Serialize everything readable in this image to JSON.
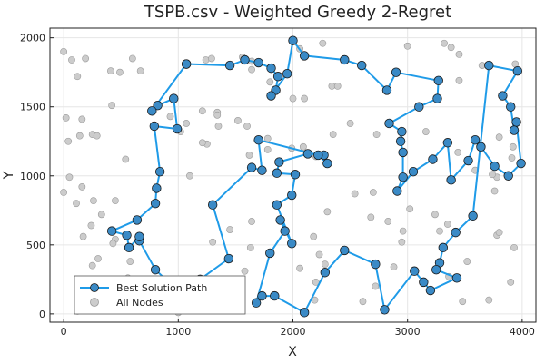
{
  "chart_data": {
    "type": "scatter",
    "title": "TSPB.csv - Weighted Greedy 2-Regret",
    "xlabel": "X",
    "ylabel": "Y",
    "xlim": [
      -120,
      4120
    ],
    "ylim": [
      -60,
      2070
    ],
    "xticks": [
      0,
      1000,
      2000,
      3000,
      4000
    ],
    "yticks": [
      0,
      500,
      1000,
      1500,
      2000
    ],
    "grid": true,
    "legend_position": "bottom-left",
    "colors": {
      "path": "#1f9be8",
      "node_fill": "#3a8ac6",
      "node_edge": "#1a1a1a",
      "all_nodes": "#cccccc",
      "all_nodes_edge": "#9a9a9a"
    },
    "series": [
      {
        "name": "Best Solution Path",
        "style": "line+marker",
        "points": [
          [
            1070,
            1810
          ],
          [
            1450,
            1800
          ],
          [
            1580,
            1840
          ],
          [
            1700,
            1820
          ],
          [
            1810,
            1780
          ],
          [
            1870,
            1720
          ],
          [
            1850,
            1620
          ],
          [
            1810,
            1580
          ],
          [
            1950,
            1740
          ],
          [
            2000,
            1980
          ],
          [
            2100,
            1870
          ],
          [
            2450,
            1840
          ],
          [
            2600,
            1800
          ],
          [
            2820,
            1620
          ],
          [
            2900,
            1750
          ],
          [
            3270,
            1690
          ],
          [
            3260,
            1560
          ],
          [
            3100,
            1500
          ],
          [
            2840,
            1380
          ],
          [
            2950,
            1320
          ],
          [
            2940,
            1250
          ],
          [
            2960,
            1170
          ],
          [
            2960,
            990
          ],
          [
            2910,
            890
          ],
          [
            3050,
            1030
          ],
          [
            3220,
            1120
          ],
          [
            3350,
            1240
          ],
          [
            3380,
            970
          ],
          [
            3530,
            1110
          ],
          [
            3590,
            1260
          ],
          [
            3640,
            1210
          ],
          [
            3760,
            1070
          ],
          [
            3880,
            1000
          ],
          [
            3990,
            1090
          ],
          [
            3950,
            1390
          ],
          [
            3930,
            1330
          ],
          [
            3900,
            1500
          ],
          [
            3830,
            1580
          ],
          [
            3960,
            1760
          ],
          [
            3710,
            1800
          ],
          [
            3570,
            710
          ],
          [
            3420,
            590
          ],
          [
            3310,
            480
          ],
          [
            3280,
            370
          ],
          [
            3250,
            320
          ],
          [
            3430,
            260
          ],
          [
            3200,
            170
          ],
          [
            3140,
            230
          ],
          [
            3060,
            310
          ],
          [
            2800,
            30
          ],
          [
            2720,
            360
          ],
          [
            2450,
            460
          ],
          [
            2280,
            300
          ],
          [
            2100,
            10
          ],
          [
            1840,
            130
          ],
          [
            1730,
            130
          ],
          [
            1680,
            80
          ],
          [
            1800,
            440
          ],
          [
            1930,
            600
          ],
          [
            1890,
            680
          ],
          [
            1990,
            510
          ],
          [
            1860,
            790
          ],
          [
            1990,
            860
          ],
          [
            2020,
            1010
          ],
          [
            1860,
            1020
          ],
          [
            1880,
            1100
          ],
          [
            2130,
            1160
          ],
          [
            2270,
            1150
          ],
          [
            2300,
            1090
          ],
          [
            2220,
            1150
          ],
          [
            1700,
            1260
          ],
          [
            1730,
            1040
          ],
          [
            1640,
            1060
          ],
          [
            1300,
            790
          ],
          [
            1440,
            400
          ],
          [
            1190,
            250
          ],
          [
            1160,
            40
          ],
          [
            800,
            320
          ],
          [
            660,
            530
          ],
          [
            660,
            560
          ],
          [
            570,
            480
          ],
          [
            550,
            570
          ],
          [
            420,
            600
          ],
          [
            640,
            680
          ],
          [
            800,
            800
          ],
          [
            810,
            910
          ],
          [
            840,
            1030
          ],
          [
            790,
            1360
          ],
          [
            990,
            1340
          ],
          [
            960,
            1560
          ],
          [
            820,
            1510
          ],
          [
            770,
            1470
          ],
          [
            1070,
            1810
          ]
        ]
      },
      {
        "name": "All Nodes",
        "style": "marker",
        "points": [
          [
            0,
            1900
          ],
          [
            70,
            1840
          ],
          [
            190,
            1850
          ],
          [
            120,
            1720
          ],
          [
            410,
            1760
          ],
          [
            490,
            1750
          ],
          [
            600,
            1850
          ],
          [
            670,
            1760
          ],
          [
            1240,
            1840
          ],
          [
            1290,
            1850
          ],
          [
            1560,
            1860
          ],
          [
            1640,
            1830
          ],
          [
            1640,
            1770
          ],
          [
            2060,
            1920
          ],
          [
            2260,
            1960
          ],
          [
            3000,
            1940
          ],
          [
            3320,
            1960
          ],
          [
            3380,
            1930
          ],
          [
            3450,
            1880
          ],
          [
            3650,
            1800
          ],
          [
            3940,
            1810
          ],
          [
            1900,
            1720
          ],
          [
            1800,
            1680
          ],
          [
            2340,
            1650
          ],
          [
            2390,
            1650
          ],
          [
            2000,
            1560
          ],
          [
            2100,
            1560
          ],
          [
            3450,
            1690
          ],
          [
            20,
            1420
          ],
          [
            160,
            1410
          ],
          [
            140,
            1290
          ],
          [
            40,
            1250
          ],
          [
            250,
            1300
          ],
          [
            290,
            1290
          ],
          [
            420,
            1510
          ],
          [
            930,
            1430
          ],
          [
            1070,
            1380
          ],
          [
            1020,
            1320
          ],
          [
            1210,
            1470
          ],
          [
            1340,
            1460
          ],
          [
            1340,
            1440
          ],
          [
            1520,
            1400
          ],
          [
            1350,
            1360
          ],
          [
            1600,
            1360
          ],
          [
            1620,
            1150
          ],
          [
            1250,
            1230
          ],
          [
            1210,
            1240
          ],
          [
            1780,
            1270
          ],
          [
            1780,
            1190
          ],
          [
            1990,
            1200
          ],
          [
            2090,
            1210
          ],
          [
            2200,
            1140
          ],
          [
            2350,
            1300
          ],
          [
            2500,
            1380
          ],
          [
            2730,
            1300
          ],
          [
            3160,
            1320
          ],
          [
            3230,
            1120
          ],
          [
            3440,
            1170
          ],
          [
            3800,
            1280
          ],
          [
            3780,
            990
          ],
          [
            3590,
            1040
          ],
          [
            3740,
            1010
          ],
          [
            3760,
            890
          ],
          [
            3920,
            1210
          ],
          [
            3910,
            1130
          ],
          [
            540,
            1120
          ],
          [
            1100,
            1000
          ],
          [
            50,
            990
          ],
          [
            0,
            880
          ],
          [
            160,
            920
          ],
          [
            110,
            800
          ],
          [
            260,
            820
          ],
          [
            330,
            720
          ],
          [
            450,
            820
          ],
          [
            1640,
            670
          ],
          [
            1450,
            610
          ],
          [
            1300,
            520
          ],
          [
            2180,
            560
          ],
          [
            2300,
            740
          ],
          [
            2540,
            870
          ],
          [
            2700,
            880
          ],
          [
            2680,
            700
          ],
          [
            2830,
            670
          ],
          [
            3020,
            760
          ],
          [
            2950,
            520
          ],
          [
            2960,
            600
          ],
          [
            3240,
            720
          ],
          [
            3280,
            600
          ],
          [
            3780,
            570
          ],
          [
            3350,
            650
          ],
          [
            3800,
            590
          ],
          [
            3930,
            480
          ],
          [
            3900,
            230
          ],
          [
            3710,
            100
          ],
          [
            3520,
            380
          ],
          [
            3360,
            270
          ],
          [
            3480,
            90
          ],
          [
            2880,
            340
          ],
          [
            2720,
            200
          ],
          [
            2610,
            90
          ],
          [
            2200,
            230
          ],
          [
            2190,
            100
          ],
          [
            2060,
            330
          ],
          [
            2280,
            360
          ],
          [
            2230,
            430
          ],
          [
            1580,
            310
          ],
          [
            1630,
            480
          ],
          [
            1280,
            160
          ],
          [
            1180,
            180
          ],
          [
            1100,
            140
          ],
          [
            1030,
            140
          ],
          [
            880,
            40
          ],
          [
            530,
            220
          ],
          [
            300,
            400
          ],
          [
            170,
            560
          ],
          [
            240,
            640
          ],
          [
            450,
            540
          ],
          [
            430,
            510
          ],
          [
            580,
            380
          ],
          [
            560,
            260
          ],
          [
            250,
            350
          ],
          [
            120,
            20
          ],
          [
            860,
            60
          ],
          [
            1000,
            10
          ]
        ]
      }
    ]
  }
}
